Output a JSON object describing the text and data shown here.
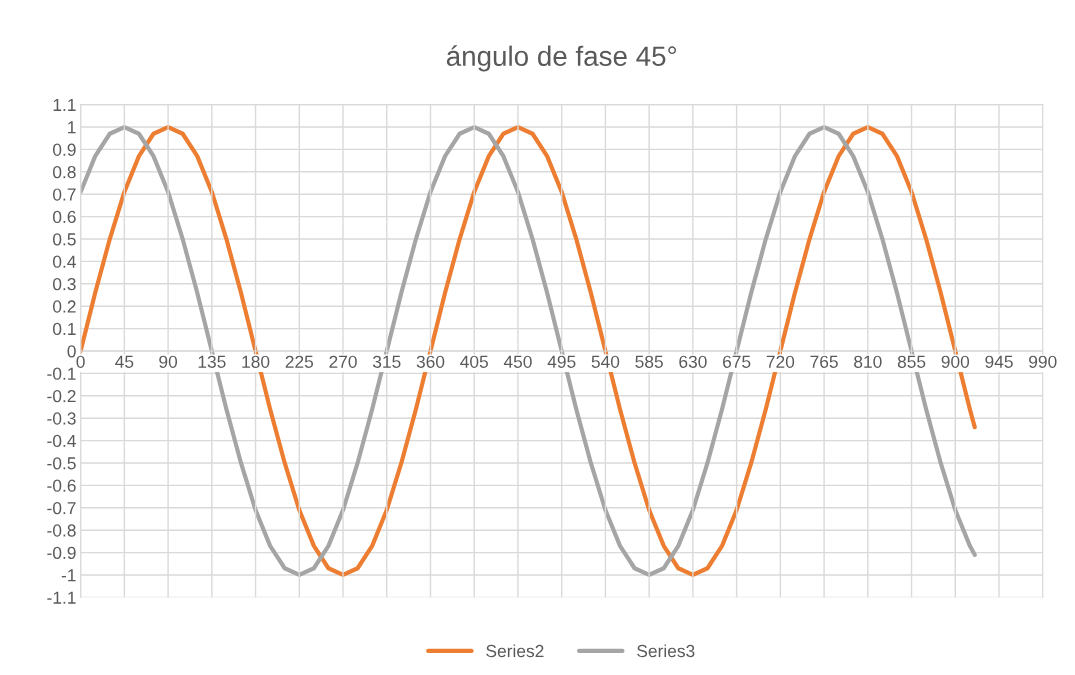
{
  "chart_data": {
    "type": "line",
    "title": "ángulo de fase 45°",
    "x": [
      0,
      15,
      30,
      45,
      60,
      75,
      90,
      105,
      120,
      135,
      150,
      165,
      180,
      195,
      210,
      225,
      240,
      255,
      270,
      285,
      300,
      315,
      330,
      345,
      360,
      375,
      390,
      405,
      420,
      435,
      450,
      465,
      480,
      495,
      510,
      525,
      540,
      555,
      570,
      585,
      600,
      615,
      630,
      645,
      660,
      675,
      690,
      705,
      720,
      735,
      750,
      765,
      780,
      795,
      810,
      825,
      840,
      855,
      870,
      885,
      900,
      915,
      920
    ],
    "series": [
      {
        "name": "Series2",
        "color": "#ed7d31",
        "values": [
          0,
          0.26,
          0.5,
          0.71,
          0.87,
          0.97,
          1,
          0.97,
          0.87,
          0.71,
          0.5,
          0.26,
          0,
          -0.26,
          -0.5,
          -0.71,
          -0.87,
          -0.97,
          -1,
          -0.97,
          -0.87,
          -0.71,
          -0.5,
          -0.26,
          0,
          0.26,
          0.5,
          0.71,
          0.87,
          0.97,
          1,
          0.97,
          0.87,
          0.71,
          0.5,
          0.26,
          0,
          -0.26,
          -0.5,
          -0.71,
          -0.87,
          -0.97,
          -1,
          -0.97,
          -0.87,
          -0.71,
          -0.5,
          -0.26,
          0,
          0.26,
          0.5,
          0.71,
          0.87,
          0.97,
          1,
          0.97,
          0.87,
          0.71,
          0.5,
          0.26,
          0,
          -0.26,
          -0.34
        ]
      },
      {
        "name": "Series3",
        "color": "#a5a5a5",
        "values": [
          0.71,
          0.87,
          0.97,
          1,
          0.97,
          0.87,
          0.71,
          0.5,
          0.26,
          0,
          -0.26,
          -0.5,
          -0.71,
          -0.87,
          -0.97,
          -1,
          -0.97,
          -0.87,
          -0.71,
          -0.5,
          -0.26,
          0,
          0.26,
          0.5,
          0.71,
          0.87,
          0.97,
          1,
          0.97,
          0.87,
          0.71,
          0.5,
          0.26,
          0,
          -0.26,
          -0.5,
          -0.71,
          -0.87,
          -0.97,
          -1,
          -0.97,
          -0.87,
          -0.71,
          -0.5,
          -0.26,
          0,
          0.26,
          0.5,
          0.71,
          0.87,
          0.97,
          1,
          0.97,
          0.87,
          0.71,
          0.5,
          0.26,
          0,
          -0.26,
          -0.5,
          -0.71,
          -0.87,
          -0.91
        ]
      }
    ],
    "xlim": [
      0,
      990
    ],
    "xticks": [
      0,
      45,
      90,
      135,
      180,
      225,
      270,
      315,
      360,
      405,
      450,
      495,
      540,
      585,
      630,
      675,
      720,
      765,
      810,
      855,
      900,
      945,
      990
    ],
    "ylim": [
      -1.1,
      1.1
    ],
    "yticks": [
      -1.1,
      -1,
      -0.9,
      -0.8,
      -0.7,
      -0.6,
      -0.5,
      -0.4,
      -0.3,
      -0.2,
      -0.1,
      0,
      0.1,
      0.2,
      0.3,
      0.4,
      0.5,
      0.6,
      0.7,
      0.8,
      0.9,
      1,
      1.1
    ],
    "grid": true,
    "legend": "bottom",
    "marker": "none",
    "line_style": "solid"
  }
}
